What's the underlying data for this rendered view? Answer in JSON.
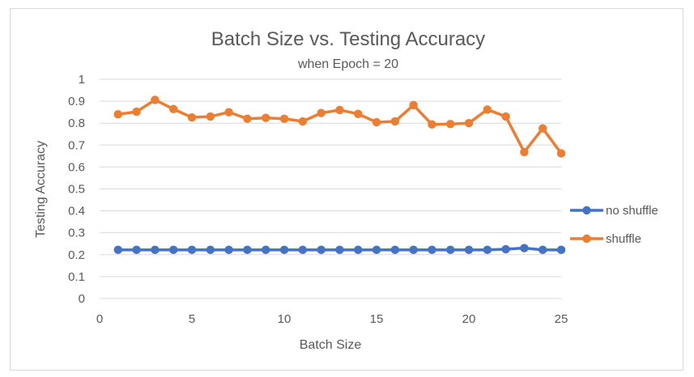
{
  "chart_data": {
    "type": "line",
    "title": "Batch Size vs. Testing Accuracy",
    "subtitle": "when Epoch = 20",
    "xlabel": "Batch Size",
    "ylabel": "Testing Accuracy",
    "xlim": [
      0,
      25
    ],
    "ylim": [
      0,
      1
    ],
    "xticks": [
      "0",
      "5",
      "10",
      "15",
      "20",
      "25"
    ],
    "xtick_values": [
      0,
      5,
      10,
      15,
      20,
      25
    ],
    "yticks": [
      "0",
      "0.1",
      "0.2",
      "0.3",
      "0.4",
      "0.5",
      "0.6",
      "0.7",
      "0.8",
      "0.9",
      "1"
    ],
    "ytick_values": [
      0,
      0.1,
      0.2,
      0.3,
      0.4,
      0.5,
      0.6,
      0.7,
      0.8,
      0.9,
      1
    ],
    "grid": "horizontal",
    "legend_position": "right",
    "x": [
      1,
      2,
      3,
      4,
      5,
      6,
      7,
      8,
      9,
      10,
      11,
      12,
      13,
      14,
      15,
      16,
      17,
      18,
      19,
      20,
      21,
      22,
      23,
      24,
      25
    ],
    "series": [
      {
        "name": "no shuffle",
        "color": "#4472c4",
        "values": [
          0.222,
          0.222,
          0.222,
          0.222,
          0.222,
          0.222,
          0.222,
          0.222,
          0.222,
          0.222,
          0.222,
          0.222,
          0.222,
          0.222,
          0.222,
          0.222,
          0.222,
          0.222,
          0.222,
          0.222,
          0.222,
          0.225,
          0.23,
          0.222,
          0.222
        ]
      },
      {
        "name": "shuffle",
        "color": "#ed7d31",
        "values": [
          0.84,
          0.852,
          0.906,
          0.864,
          0.826,
          0.83,
          0.85,
          0.82,
          0.824,
          0.82,
          0.808,
          0.846,
          0.86,
          0.842,
          0.804,
          0.808,
          0.882,
          0.794,
          0.796,
          0.8,
          0.862,
          0.83,
          0.668,
          0.776,
          0.662
        ]
      }
    ]
  }
}
